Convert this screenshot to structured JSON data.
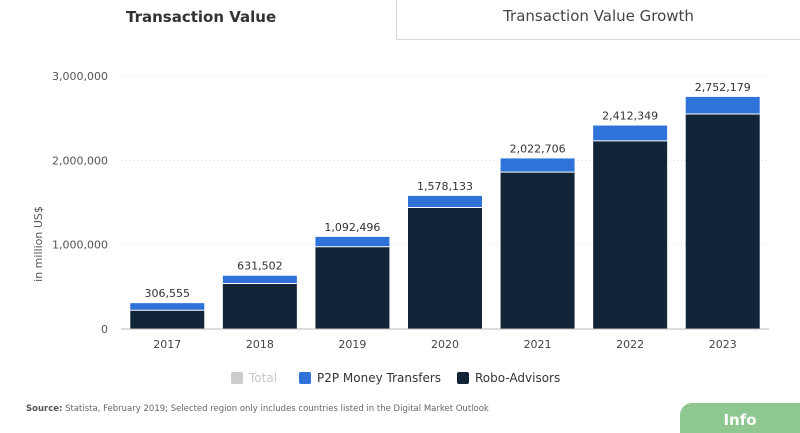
{
  "tabs": {
    "active_label": "Transaction Value",
    "inactive_label": "Transaction Value Growth"
  },
  "colors": {
    "p2p": "#2f73d8",
    "robo": "#122438",
    "total_disabled": "#cccccc",
    "grid": "#d6d6d6",
    "info": "#8ec890"
  },
  "chart_data": {
    "type": "bar",
    "stacked": true,
    "categories": [
      "2017",
      "2018",
      "2019",
      "2020",
      "2021",
      "2022",
      "2023"
    ],
    "series": [
      {
        "name": "Robo-Advisors",
        "values": [
          222000,
          540000,
          975000,
          1440000,
          1860000,
          2230000,
          2550000
        ]
      },
      {
        "name": "P2P Money Transfers",
        "values": [
          84555,
          91502,
          117496,
          138133,
          162706,
          182349,
          202179
        ]
      }
    ],
    "totals": [
      306555,
      631502,
      1092496,
      1578133,
      2022706,
      2412349,
      2752179
    ],
    "total_labels": [
      "306,555",
      "631,502",
      "1,092,496",
      "1,578,133",
      "2,022,706",
      "2,412,349",
      "2,752,179"
    ],
    "ylabel": "in million US$",
    "ylim": [
      0,
      3000000
    ],
    "yticks": [
      0,
      1000000,
      2000000,
      3000000
    ],
    "ytick_labels": [
      "0",
      "1,000,000",
      "2,000,000",
      "3,000,000"
    ],
    "grid": true,
    "legend": [
      "Total",
      "P2P Money Transfers",
      "Robo-Advisors"
    ],
    "legend_disabled": "Total",
    "legend_position": "bottom"
  },
  "source": {
    "label": "Source:",
    "text": "Statista, February 2019; Selected region only includes countries listed in the Digital Market Outlook"
  },
  "info_button": "Info"
}
